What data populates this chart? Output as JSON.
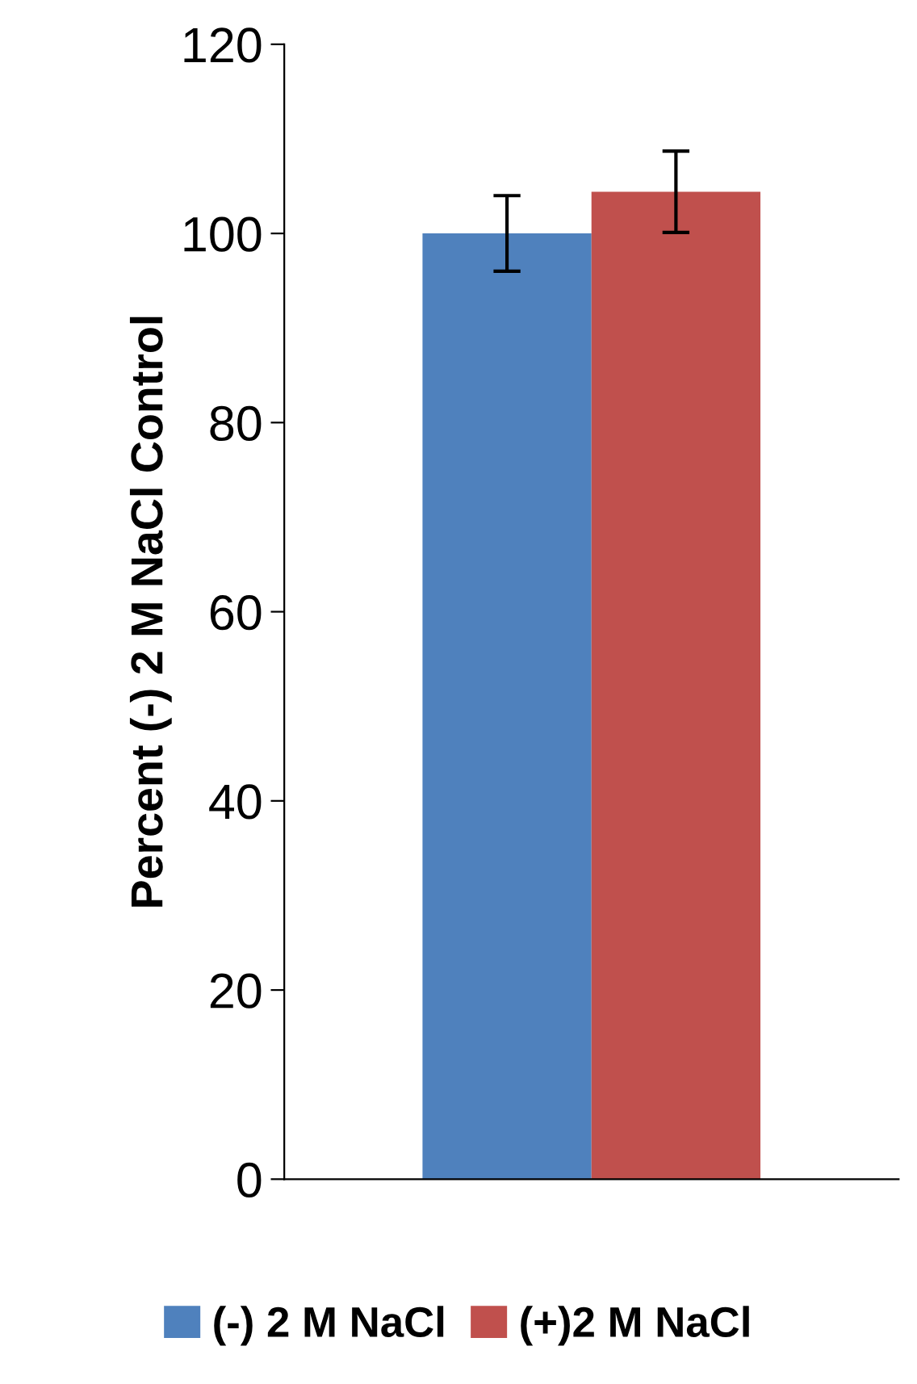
{
  "chart_data": {
    "type": "bar",
    "ylabel": "Percent (-) 2 M NaCl Control",
    "categories": [
      null
    ],
    "series": [
      {
        "name": "(-) 2 M NaCl",
        "color": "#4f81bd",
        "values": [
          100
        ],
        "errors": [
          4
        ]
      },
      {
        "name": "(+)2 M NaCl",
        "color": "#c0504d",
        "values": [
          104.4
        ],
        "errors": [
          4.3
        ]
      }
    ],
    "ylim": [
      0,
      120
    ],
    "yticks": [
      0,
      20,
      40,
      60,
      80,
      100,
      120
    ],
    "grid": false,
    "legend": "bottom"
  }
}
